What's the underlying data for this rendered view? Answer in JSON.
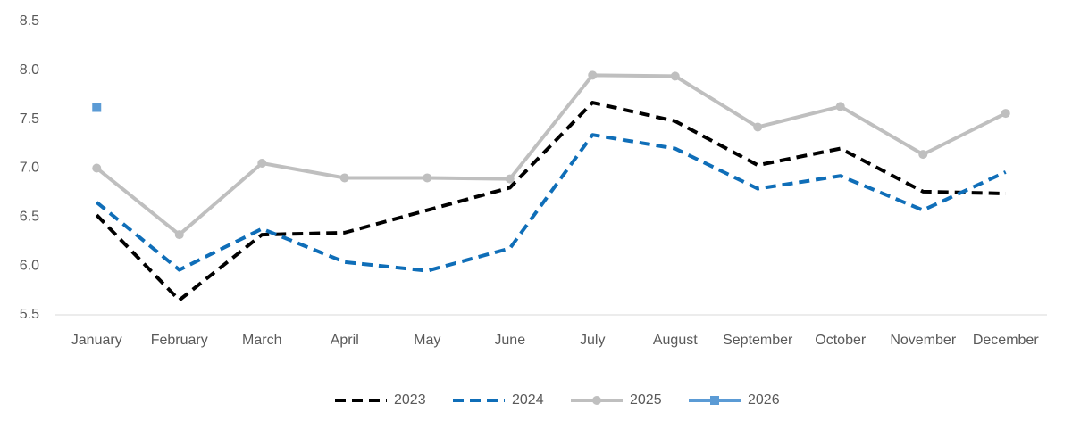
{
  "chart_data": {
    "type": "line",
    "categories": [
      "January",
      "February",
      "March",
      "April",
      "May",
      "June",
      "July",
      "August",
      "September",
      "October",
      "November",
      "December"
    ],
    "series": [
      {
        "name": "2023",
        "color": "#000000",
        "dashed": true,
        "marker": "none",
        "values": [
          6.52,
          5.65,
          6.32,
          6.34,
          6.57,
          6.8,
          7.67,
          7.48,
          7.03,
          7.2,
          6.76,
          6.74
        ]
      },
      {
        "name": "2024",
        "color": "#0f6eb8",
        "dashed": true,
        "marker": "none",
        "values": [
          6.65,
          5.96,
          6.38,
          6.04,
          5.95,
          6.18,
          7.34,
          7.2,
          6.79,
          6.92,
          6.57,
          6.96
        ]
      },
      {
        "name": "2025",
        "color": "#bfbfbf",
        "dashed": false,
        "marker": "circle",
        "values": [
          7.0,
          6.32,
          7.05,
          6.9,
          6.9,
          6.89,
          7.95,
          7.94,
          7.42,
          7.63,
          7.14,
          7.56
        ]
      },
      {
        "name": "2026",
        "color": "#5b9bd5",
        "dashed": false,
        "marker": "square",
        "values": [
          7.62,
          null,
          null,
          null,
          null,
          null,
          null,
          null,
          null,
          null,
          null,
          null
        ]
      }
    ],
    "ylim": [
      5.5,
      8.5
    ],
    "yticks": [
      5.5,
      {
        "value": 6,
        "label": "6.0"
      },
      6.5,
      {
        "value": 7,
        "label": "7.0"
      },
      7.5,
      {
        "value": 8,
        "label": "8.0"
      },
      8.5
    ],
    "grid": false,
    "legend": "bottom"
  }
}
